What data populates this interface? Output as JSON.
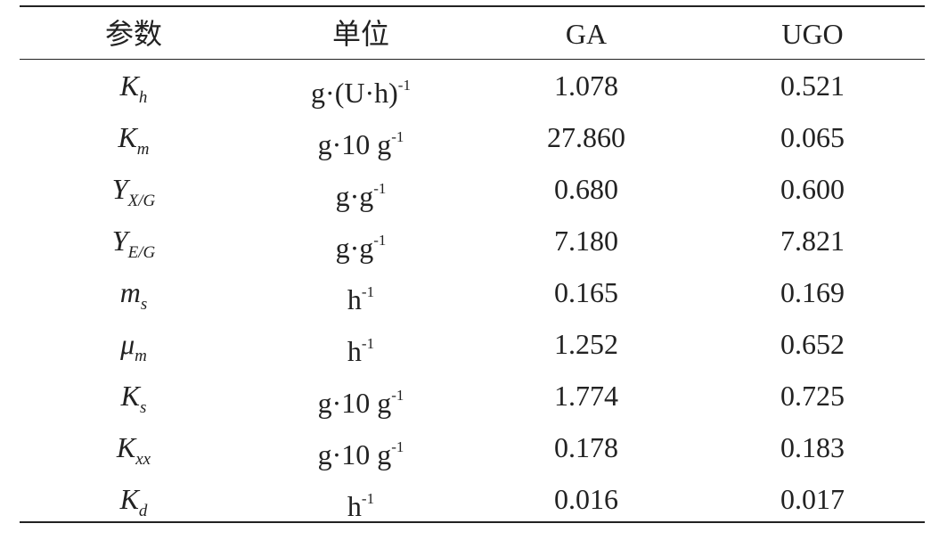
{
  "table": {
    "header": [
      "参数",
      "单位",
      "GA",
      "UGO"
    ],
    "rows": [
      [
        {
          "main": "K",
          "sub": "h"
        },
        {
          "main": "g·(U·h)",
          "sup": "-1"
        },
        "1.078",
        "0.521"
      ],
      [
        {
          "main": "K",
          "sub": "m"
        },
        {
          "main": "g·10 g",
          "sup": "-1"
        },
        "27.860",
        "0.065"
      ],
      [
        {
          "main": "Y",
          "sub": "X/G"
        },
        {
          "main": "g·g",
          "sup": "-1"
        },
        "0.680",
        "0.600"
      ],
      [
        {
          "main": "Y",
          "sub": "E/G"
        },
        {
          "main": "g·g",
          "sup": "-1"
        },
        "7.180",
        "7.821"
      ],
      [
        {
          "main": "m",
          "sub": "s"
        },
        {
          "main": "h",
          "sup": "-1"
        },
        "0.165",
        "0.169"
      ],
      [
        {
          "main": "μ",
          "sub": "m"
        },
        {
          "main": "h",
          "sup": "-1"
        },
        "1.252",
        "0.652"
      ],
      [
        {
          "main": "K",
          "sub": "s"
        },
        {
          "main": "g·10 g",
          "sup": "-1"
        },
        "1.774",
        "0.725"
      ],
      [
        {
          "main": "K",
          "sub": "xx"
        },
        {
          "main": "g·10 g",
          "sup": "-1"
        },
        "0.178",
        "0.183"
      ],
      [
        {
          "main": "K",
          "sub": "d"
        },
        {
          "main": "h",
          "sup": "-1"
        },
        "0.016",
        "0.017"
      ]
    ]
  }
}
